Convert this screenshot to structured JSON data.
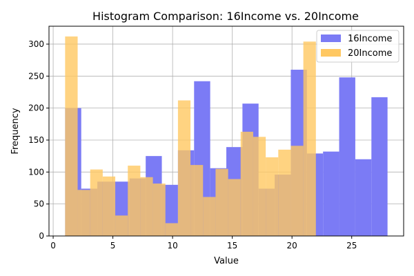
{
  "chart_data": {
    "type": "bar",
    "title": "Histogram Comparison: 16Income vs. 20Income",
    "xlabel": "Value",
    "ylabel": "Frequency",
    "xlim": [
      -0.35,
      29.35
    ],
    "ylim": [
      0,
      328
    ],
    "grid": true,
    "legend_position": "top-right",
    "x_ticks": [
      0,
      5,
      10,
      15,
      20,
      25
    ],
    "y_ticks": [
      0,
      50,
      100,
      150,
      200,
      250,
      300
    ],
    "series": [
      {
        "name": "16Income",
        "color": "#7b7bf5",
        "bins": [
          {
            "x0": 1.0,
            "x1": 2.35,
            "value": 200
          },
          {
            "x0": 2.35,
            "x1": 3.7,
            "value": 74
          },
          {
            "x0": 3.7,
            "x1": 5.05,
            "value": 85
          },
          {
            "x0": 5.05,
            "x1": 6.4,
            "value": 85
          },
          {
            "x0": 6.4,
            "x1": 7.75,
            "value": 90
          },
          {
            "x0": 7.75,
            "x1": 9.1,
            "value": 125
          },
          {
            "x0": 9.1,
            "x1": 10.45,
            "value": 80
          },
          {
            "x0": 10.45,
            "x1": 11.8,
            "value": 134
          },
          {
            "x0": 11.8,
            "x1": 13.15,
            "value": 242
          },
          {
            "x0": 13.15,
            "x1": 14.5,
            "value": 106
          },
          {
            "x0": 14.5,
            "x1": 15.85,
            "value": 139
          },
          {
            "x0": 15.85,
            "x1": 17.2,
            "value": 207
          },
          {
            "x0": 17.2,
            "x1": 18.55,
            "value": 74
          },
          {
            "x0": 18.55,
            "x1": 19.9,
            "value": 96
          },
          {
            "x0": 19.9,
            "x1": 21.25,
            "value": 260
          },
          {
            "x0": 21.25,
            "x1": 22.6,
            "value": 129
          },
          {
            "x0": 22.6,
            "x1": 23.95,
            "value": 132
          },
          {
            "x0": 23.95,
            "x1": 25.3,
            "value": 248
          },
          {
            "x0": 25.3,
            "x1": 26.65,
            "value": 120
          },
          {
            "x0": 26.65,
            "x1": 28.0,
            "value": 217
          }
        ]
      },
      {
        "name": "20Income",
        "color": "#ffc862",
        "bins": [
          {
            "x0": 1.0,
            "x1": 2.05,
            "value": 312
          },
          {
            "x0": 2.05,
            "x1": 3.1,
            "value": 72
          },
          {
            "x0": 3.1,
            "x1": 4.15,
            "value": 104
          },
          {
            "x0": 4.15,
            "x1": 5.2,
            "value": 93
          },
          {
            "x0": 5.2,
            "x1": 6.25,
            "value": 32
          },
          {
            "x0": 6.25,
            "x1": 7.3,
            "value": 110
          },
          {
            "x0": 7.3,
            "x1": 8.35,
            "value": 92
          },
          {
            "x0": 8.35,
            "x1": 9.4,
            "value": 82
          },
          {
            "x0": 9.4,
            "x1": 10.45,
            "value": 20
          },
          {
            "x0": 10.45,
            "x1": 11.5,
            "value": 212
          },
          {
            "x0": 11.5,
            "x1": 12.55,
            "value": 111
          },
          {
            "x0": 12.55,
            "x1": 13.6,
            "value": 61
          },
          {
            "x0": 13.6,
            "x1": 14.65,
            "value": 105
          },
          {
            "x0": 14.65,
            "x1": 15.7,
            "value": 89
          },
          {
            "x0": 15.7,
            "x1": 16.75,
            "value": 163
          },
          {
            "x0": 16.75,
            "x1": 17.8,
            "value": 155
          },
          {
            "x0": 17.8,
            "x1": 18.85,
            "value": 123
          },
          {
            "x0": 18.85,
            "x1": 19.9,
            "value": 135
          },
          {
            "x0": 19.9,
            "x1": 20.95,
            "value": 141
          },
          {
            "x0": 20.95,
            "x1": 22.0,
            "value": 304
          }
        ]
      }
    ]
  }
}
